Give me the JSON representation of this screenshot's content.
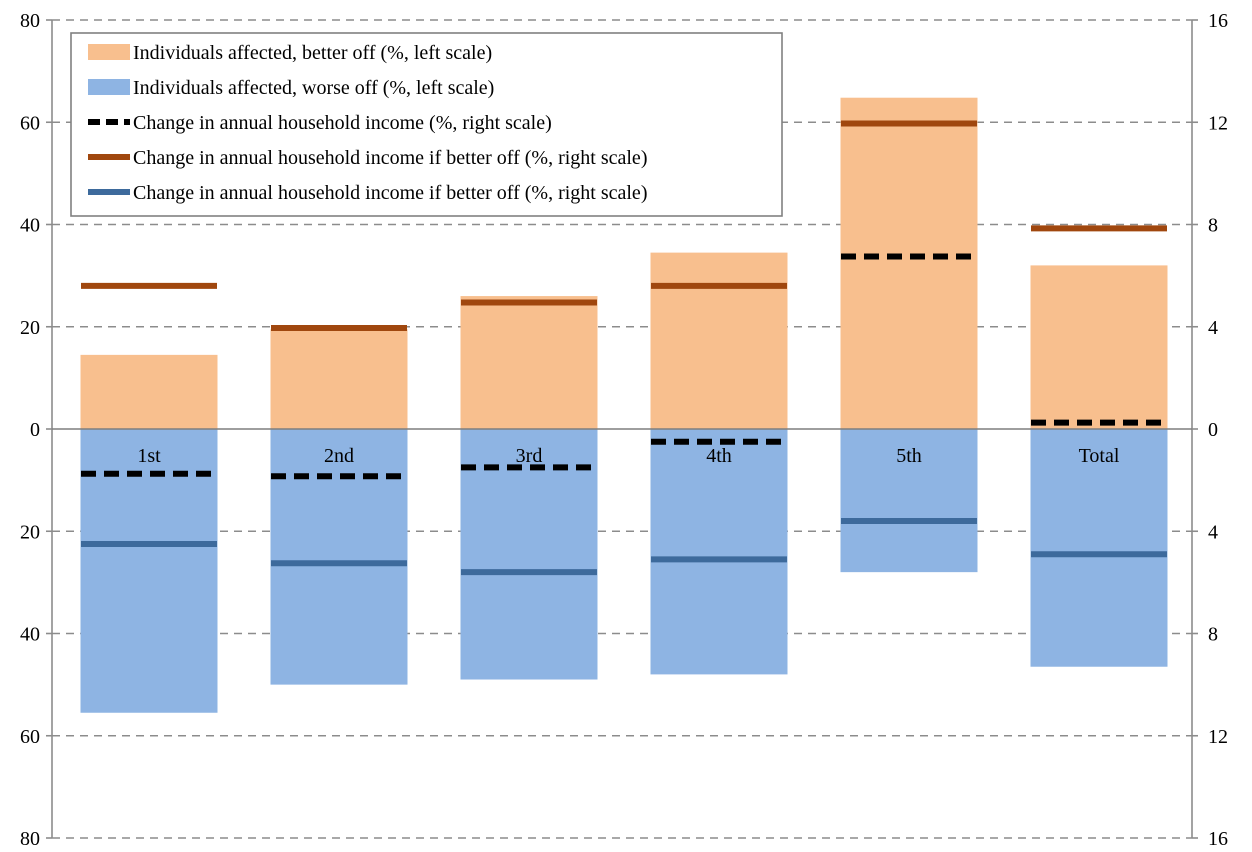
{
  "chart_data": {
    "type": "bar",
    "categories": [
      "1st",
      "2nd",
      "3rd",
      "4th",
      "5th",
      "Total"
    ],
    "left_axis": {
      "ticks": [
        "80",
        "60",
        "40",
        "20",
        "0",
        "20",
        "40",
        "60",
        "80"
      ],
      "ylim": [
        -80,
        80
      ]
    },
    "right_axis": {
      "ticks": [
        "16",
        "12",
        "8",
        "4",
        "0",
        "4",
        "8",
        "12",
        "16"
      ],
      "ylim": [
        -16,
        16
      ]
    },
    "grid": true,
    "legend_position": "top-left",
    "series": [
      {
        "name": "Individuals affected, better off (%, left scale)",
        "kind": "bar",
        "axis": "left",
        "color": "#F8BF8E",
        "values": [
          14.5,
          19.5,
          26,
          34.5,
          64.8,
          32
        ]
      },
      {
        "name": "Individuals affected, worse off (%, left scale)",
        "kind": "bar",
        "axis": "left",
        "color": "#8EB4E3",
        "values": [
          -55.5,
          -50,
          -49,
          -48,
          -28,
          -46.5
        ]
      },
      {
        "name": "Change in annual household income (%, right scale)",
        "kind": "marker",
        "style": "dashed",
        "axis": "right",
        "color": "#000000",
        "values": [
          -1.75,
          -1.85,
          -1.5,
          -0.5,
          6.75,
          0.25
        ]
      },
      {
        "name": "Change in annual household income if better off (%, right scale)",
        "kind": "marker",
        "style": "solid",
        "axis": "right",
        "color": "#A0470E",
        "values": [
          5.6,
          3.95,
          4.95,
          5.6,
          11.95,
          7.85
        ]
      },
      {
        "name": "Change in annual household income if better off (%, right scale)",
        "kind": "marker",
        "style": "solid",
        "axis": "right",
        "color": "#3D6A9C",
        "values": [
          -4.5,
          -5.25,
          -5.6,
          -5.1,
          -3.6,
          -4.9
        ]
      }
    ]
  }
}
